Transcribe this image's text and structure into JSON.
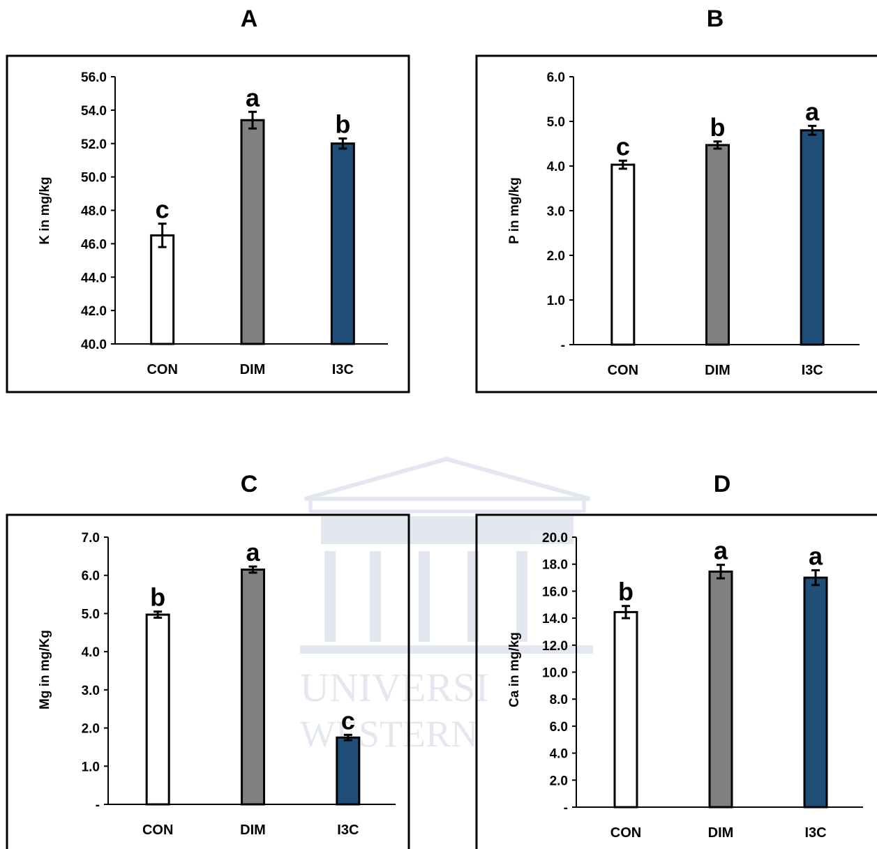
{
  "watermark": {
    "line1": "UNIVERSI",
    "line2": "WESTERN"
  },
  "categories": [
    "CON",
    "DIM",
    "I3C"
  ],
  "bar_colors": [
    "#ffffff",
    "#808080",
    "#1f4e79"
  ],
  "chart_data": [
    {
      "type": "bar",
      "title": "A",
      "ylabel": "K in mg/kg",
      "categories": [
        "CON",
        "DIM",
        "I3C"
      ],
      "values": [
        46.5,
        53.4,
        52.0
      ],
      "errors": [
        0.7,
        0.5,
        0.3
      ],
      "significance": [
        "c",
        "a",
        "b"
      ],
      "ylim": [
        40,
        56
      ],
      "ytick_labels": [
        "40.0",
        "42.0",
        "44.0",
        "46.0",
        "48.0",
        "50.0",
        "52.0",
        "54.0",
        "56.0"
      ],
      "grid": false,
      "legend": "none"
    },
    {
      "type": "bar",
      "title": "B",
      "ylabel": "P in mg/kg",
      "categories": [
        "CON",
        "DIM",
        "I3C"
      ],
      "values": [
        4.03,
        4.47,
        4.8
      ],
      "errors": [
        0.09,
        0.08,
        0.1
      ],
      "significance": [
        "c",
        "b",
        "a"
      ],
      "ylim": [
        0,
        6
      ],
      "ytick_labels": [
        "-",
        "1.0",
        "2.0",
        "3.0",
        "4.0",
        "5.0",
        "6.0"
      ],
      "grid": false,
      "legend": "none"
    },
    {
      "type": "bar",
      "title": "C",
      "ylabel": "Mg in  mg/Kg",
      "categories": [
        "CON",
        "DIM",
        "I3C"
      ],
      "values": [
        4.97,
        6.15,
        1.75
      ],
      "errors": [
        0.08,
        0.08,
        0.07
      ],
      "significance": [
        "b",
        "a",
        "c"
      ],
      "ylim": [
        0,
        7
      ],
      "ytick_labels": [
        "-",
        "1.0",
        "2.0",
        "3.0",
        "4.0",
        "5.0",
        "6.0",
        "7.0"
      ],
      "grid": false,
      "legend": "none"
    },
    {
      "type": "bar",
      "title": "D",
      "ylabel": "Ca in mg/kg",
      "categories": [
        "CON",
        "DIM",
        "I3C"
      ],
      "values": [
        14.45,
        17.45,
        17.0
      ],
      "errors": [
        0.45,
        0.5,
        0.55
      ],
      "significance": [
        "b",
        "a",
        "a"
      ],
      "ylim": [
        0,
        20
      ],
      "ytick_labels": [
        "-",
        "2.0",
        "4.0",
        "6.0",
        "8.0",
        "10.0",
        "12.0",
        "14.0",
        "16.0",
        "18.0",
        "20.0"
      ],
      "grid": false,
      "legend": "none"
    }
  ]
}
